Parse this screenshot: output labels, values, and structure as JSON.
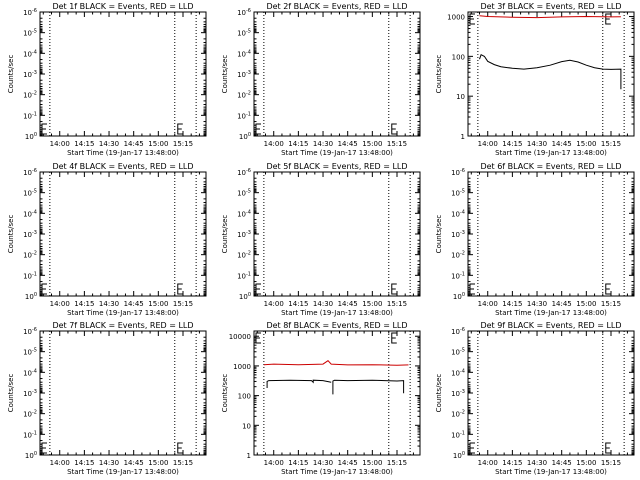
{
  "colors": {
    "events": "#000000",
    "lld": "#cc0000",
    "axis": "#000000",
    "background": "#ffffff"
  },
  "x_ticks": [
    "14:00",
    "14:15",
    "14:30",
    "14:45",
    "15:00",
    "15:15"
  ],
  "xlabel": "Start Time (19-Jan-17 13:48:00)",
  "ylabel": "Counts/sec",
  "chart_data": [
    {
      "type": "line",
      "title": "Det 1f BLACK = Events, RED = LLD",
      "xlabel": "Start Time (19-Jan-17 13:48:00)",
      "ylabel": "Counts/sec",
      "x_ticks": [
        "14:00",
        "14:15",
        "14:30",
        "14:45",
        "15:00",
        "15:15"
      ],
      "y_ticks": [
        "10^-6",
        "10^-5",
        "10^-4",
        "10^-3",
        "10^-2",
        "10^-1",
        "10^0"
      ],
      "yscale": "log",
      "ylim": [
        1,
        1e-06
      ],
      "inverted_axis": true,
      "vlines": [
        "13:54",
        "15:10",
        "15:23"
      ],
      "series": []
    },
    {
      "type": "line",
      "title": "Det 2f BLACK = Events, RED = LLD",
      "xlabel": "Start Time (19-Jan-17 13:48:00)",
      "ylabel": "Counts/sec",
      "x_ticks": [
        "14:00",
        "14:15",
        "14:30",
        "14:45",
        "15:00",
        "15:15"
      ],
      "y_ticks": [
        "10^-6",
        "10^-5",
        "10^-4",
        "10^-3",
        "10^-2",
        "10^-1",
        "10^0"
      ],
      "yscale": "log",
      "ylim": [
        1,
        1e-06
      ],
      "inverted_axis": true,
      "vlines": [
        "13:54",
        "15:10",
        "15:23"
      ],
      "series": []
    },
    {
      "type": "line",
      "title": "Det 3f BLACK = Events, RED = LLD",
      "xlabel": "Start Time (19-Jan-17 13:48:00)",
      "ylabel": "Counts/sec",
      "x_ticks": [
        "14:00",
        "14:15",
        "14:30",
        "14:45",
        "15:00",
        "15:15"
      ],
      "y_ticks": [
        "1",
        "10",
        "100",
        "1000"
      ],
      "yscale": "log",
      "ylim": [
        1,
        1300
      ],
      "inverted_axis": false,
      "vlines": [
        "13:54",
        "15:10",
        "15:23"
      ],
      "series": [
        {
          "color": "events",
          "points": [
            [
              "13:55",
              85
            ],
            [
              "13:56",
              110
            ],
            [
              "13:58",
              100
            ],
            [
              "14:00",
              75
            ],
            [
              "14:04",
              62
            ],
            [
              "14:08",
              55
            ],
            [
              "14:15",
              50
            ],
            [
              "14:22",
              48
            ],
            [
              "14:30",
              52
            ],
            [
              "14:38",
              60
            ],
            [
              "14:45",
              74
            ],
            [
              "14:50",
              80
            ],
            [
              "14:55",
              72
            ],
            [
              "15:00",
              60
            ],
            [
              "15:05",
              52
            ],
            [
              "15:10",
              48
            ],
            [
              "15:15",
              47
            ],
            [
              "15:21",
              48
            ],
            [
              "15:21",
              15
            ]
          ]
        },
        {
          "color": "lld",
          "points": [
            [
              "13:55",
              1050
            ],
            [
              "14:00",
              1000
            ],
            [
              "14:15",
              960
            ],
            [
              "14:30",
              940
            ],
            [
              "14:45",
              980
            ],
            [
              "15:00",
              1000
            ],
            [
              "15:15",
              980
            ],
            [
              "15:21",
              990
            ]
          ]
        }
      ]
    },
    {
      "type": "line",
      "title": "Det 4f BLACK = Events, RED = LLD",
      "xlabel": "Start Time (19-Jan-17 13:48:00)",
      "ylabel": "Counts/sec",
      "x_ticks": [
        "14:00",
        "14:15",
        "14:30",
        "14:45",
        "15:00",
        "15:15"
      ],
      "y_ticks": [
        "10^-6",
        "10^-5",
        "10^-4",
        "10^-3",
        "10^-2",
        "10^-1",
        "10^0"
      ],
      "yscale": "log",
      "ylim": [
        1,
        1e-06
      ],
      "inverted_axis": true,
      "vlines": [
        "13:54",
        "15:10",
        "15:23"
      ],
      "series": []
    },
    {
      "type": "line",
      "title": "Det 5f BLACK = Events, RED = LLD",
      "xlabel": "Start Time (19-Jan-17 13:48:00)",
      "ylabel": "Counts/sec",
      "x_ticks": [
        "14:00",
        "14:15",
        "14:30",
        "14:45",
        "15:00",
        "15:15"
      ],
      "y_ticks": [
        "10^-6",
        "10^-5",
        "10^-4",
        "10^-3",
        "10^-2",
        "10^-1",
        "10^0"
      ],
      "yscale": "log",
      "ylim": [
        1,
        1e-06
      ],
      "inverted_axis": true,
      "vlines": [
        "13:54",
        "15:10",
        "15:23"
      ],
      "series": []
    },
    {
      "type": "line",
      "title": "Det 6f BLACK = Events, RED = LLD",
      "xlabel": "Start Time (19-Jan-17 13:48:00)",
      "ylabel": "Counts/sec",
      "x_ticks": [
        "14:00",
        "14:15",
        "14:30",
        "14:45",
        "15:00",
        "15:15"
      ],
      "y_ticks": [
        "10^-6",
        "10^-5",
        "10^-4",
        "10^-3",
        "10^-2",
        "10^-1",
        "10^0"
      ],
      "yscale": "log",
      "ylim": [
        1,
        1e-06
      ],
      "inverted_axis": true,
      "vlines": [
        "13:54",
        "15:10",
        "15:23"
      ],
      "series": []
    },
    {
      "type": "line",
      "title": "Det 7f BLACK = Events, RED = LLD",
      "xlabel": "Start Time (19-Jan-17 13:48:00)",
      "ylabel": "Counts/sec",
      "x_ticks": [
        "14:00",
        "14:15",
        "14:30",
        "14:45",
        "15:00",
        "15:15"
      ],
      "y_ticks": [
        "10^-6",
        "10^-5",
        "10^-4",
        "10^-3",
        "10^-2",
        "10^-1",
        "10^0"
      ],
      "yscale": "log",
      "ylim": [
        1,
        1e-06
      ],
      "inverted_axis": true,
      "vlines": [
        "13:54",
        "15:10",
        "15:23"
      ],
      "series": []
    },
    {
      "type": "line",
      "title": "Det 8f BLACK = Events, RED = LLD",
      "xlabel": "Start Time (19-Jan-17 13:48:00)",
      "ylabel": "Counts/sec",
      "x_ticks": [
        "14:00",
        "14:15",
        "14:30",
        "14:45",
        "15:00",
        "15:15"
      ],
      "y_ticks": [
        "1",
        "10",
        "100",
        "1000",
        "10000"
      ],
      "yscale": "log",
      "ylim": [
        1,
        15000
      ],
      "inverted_axis": false,
      "vlines": [
        "13:54",
        "15:10",
        "15:23"
      ],
      "series": [
        {
          "color": "events",
          "points": [
            [
              "13:56",
              180
            ],
            [
              "13:56",
              300
            ],
            [
              "13:57",
              320
            ],
            [
              "14:10",
              330
            ],
            [
              "14:23",
              320
            ],
            [
              "14:24",
              280
            ],
            [
              "14:24",
              330
            ],
            [
              "14:30",
              320
            ],
            [
              "14:35",
              280
            ]
          ]
        },
        {
          "color": "events",
          "points": [
            [
              "14:36",
              110
            ],
            [
              "14:36",
              310
            ],
            [
              "14:37",
              330
            ],
            [
              "14:45",
              320
            ],
            [
              "15:00",
              330
            ],
            [
              "15:15",
              310
            ],
            [
              "15:19",
              320
            ],
            [
              "15:19",
              120
            ]
          ]
        },
        {
          "color": "lld",
          "points": [
            [
              "13:54",
              1100
            ],
            [
              "14:00",
              1150
            ],
            [
              "14:15",
              1100
            ],
            [
              "14:30",
              1150
            ],
            [
              "14:33",
              1500
            ],
            [
              "14:35",
              1150
            ],
            [
              "14:45",
              1080
            ],
            [
              "15:00",
              1100
            ],
            [
              "15:15",
              1060
            ],
            [
              "15:22",
              1080
            ]
          ]
        }
      ]
    },
    {
      "type": "line",
      "title": "Det 9f BLACK = Events, RED = LLD",
      "xlabel": "Start Time (19-Jan-17 13:48:00)",
      "ylabel": "Counts/sec",
      "x_ticks": [
        "14:00",
        "14:15",
        "14:30",
        "14:45",
        "15:00",
        "15:15"
      ],
      "y_ticks": [
        "10^-6",
        "10^-5",
        "10^-4",
        "10^-3",
        "10^-2",
        "10^-1",
        "10^0"
      ],
      "yscale": "log",
      "ylim": [
        1,
        1e-06
      ],
      "inverted_axis": true,
      "vlines": [
        "13:54",
        "15:10",
        "15:23"
      ],
      "series": []
    }
  ]
}
